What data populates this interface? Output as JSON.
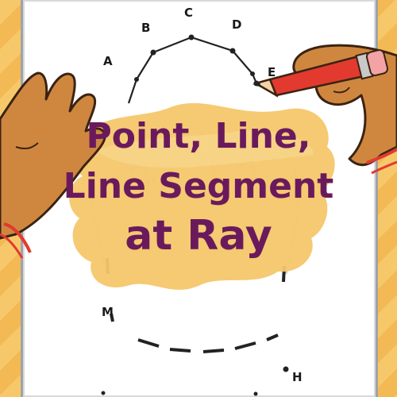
{
  "title": {
    "line1": "Point, Line,",
    "line2": "Line Segment",
    "line3": "at Ray"
  },
  "dot_labels": {
    "a": "A",
    "b": "B",
    "c": "C",
    "d": "D",
    "e": "E",
    "m": "M",
    "h": "H"
  },
  "colors": {
    "background": "#f6c667",
    "title": "#6a1a5c",
    "paint_splash": "#f4c76a",
    "pencil": "#e23a2f",
    "skin": "#cf8740"
  }
}
